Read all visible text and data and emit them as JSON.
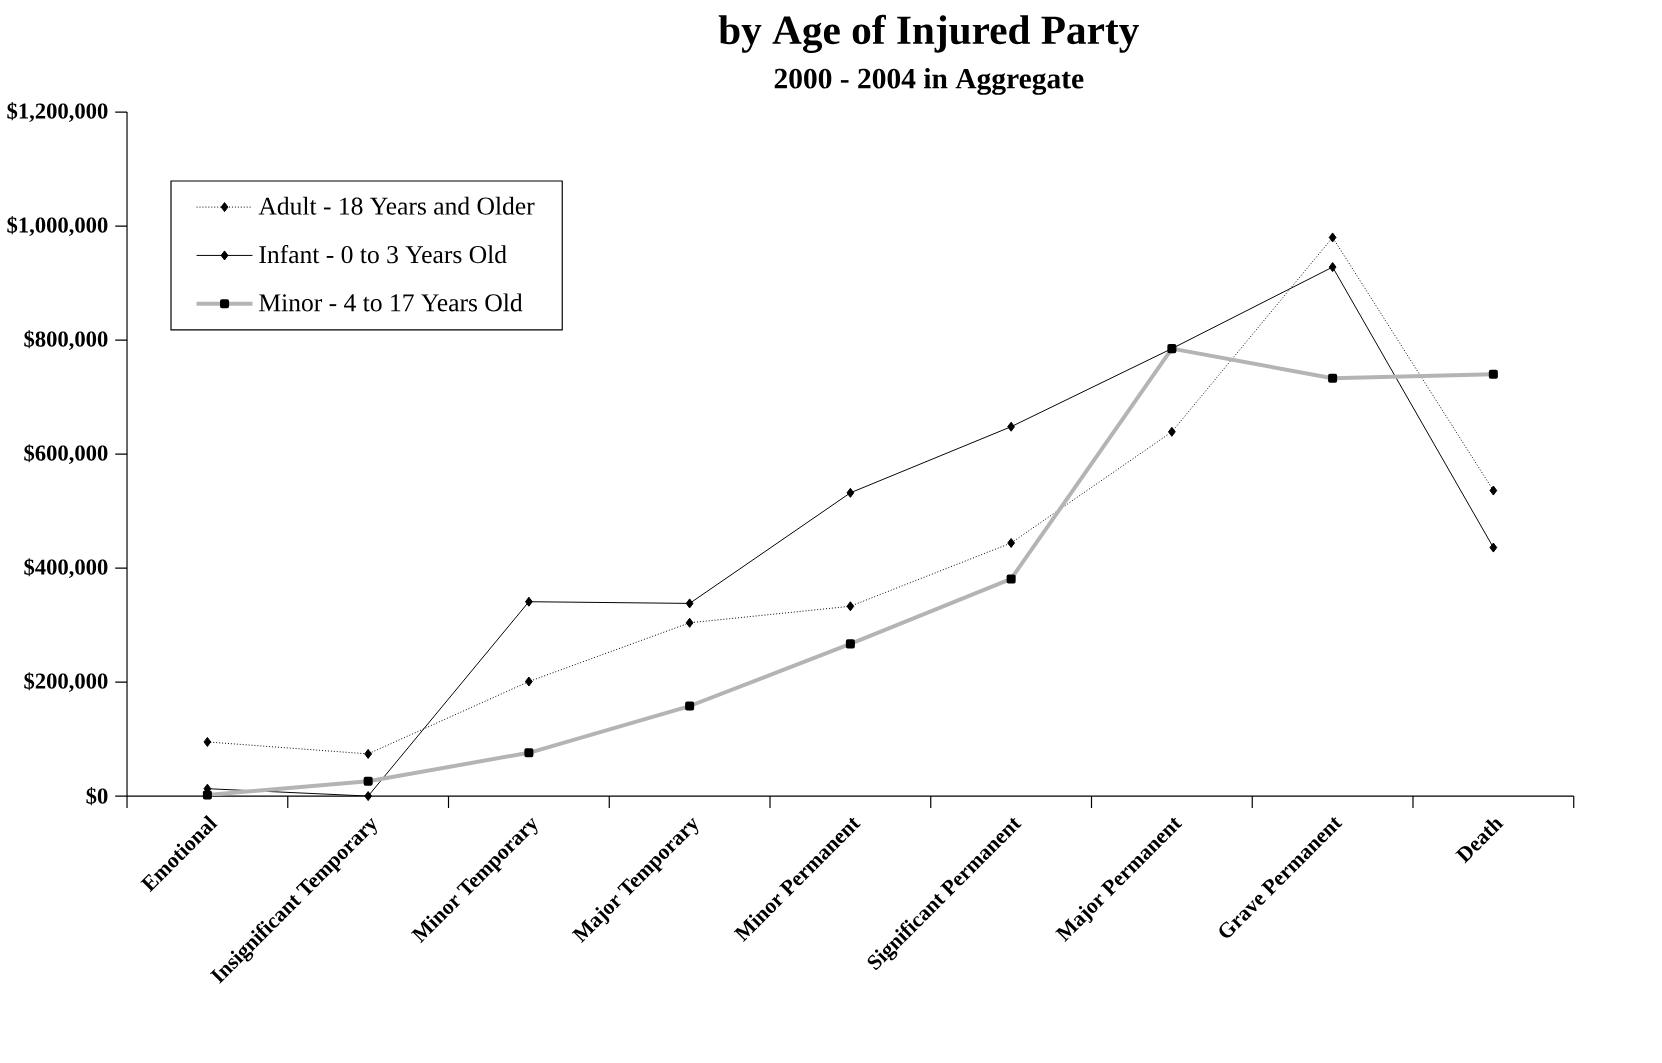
{
  "chart_data": {
    "type": "line",
    "title": "by Age of Injured Party",
    "subtitle": "2000 - 2004 in Aggregate",
    "categories": [
      "Emotional",
      "Insignificant Temporary",
      "Minor Temporary",
      "Major Temporary",
      "Minor Permanent",
      "Significant Permanent",
      "Major Permanent",
      "Grave Permanent",
      "Death"
    ],
    "series": [
      {
        "name": "Adult - 18 Years and Older",
        "color": "#000000",
        "marker": "diamond",
        "line_style": "dotted",
        "values": [
          95000,
          74000,
          201000,
          304000,
          333000,
          444000,
          639000,
          980000,
          536000
        ]
      },
      {
        "name": "Infant - 0 to 3 Years Old",
        "color": "#000000",
        "marker": "diamond",
        "line_style": "solid",
        "values": [
          13000,
          0,
          341000,
          338000,
          532000,
          648000,
          785000,
          928000,
          436000
        ]
      },
      {
        "name": "Minor - 4 to 17 Years Old",
        "color": "#b4b4b4",
        "marker": "square",
        "line_style": "solid",
        "values": [
          2000,
          26000,
          76000,
          158000,
          267000,
          381000,
          785000,
          733000,
          740000
        ]
      }
    ],
    "ylim": [
      0,
      1200000
    ],
    "yticks": [
      {
        "value": 0,
        "label": "$0"
      },
      {
        "value": 200000,
        "label": "$200,000"
      },
      {
        "value": 400000,
        "label": "$400,000"
      },
      {
        "value": 600000,
        "label": "$600,000"
      },
      {
        "value": 800000,
        "label": "$800,000"
      },
      {
        "value": 1000000,
        "label": "$1,000,000"
      },
      {
        "value": 1200000,
        "label": "$1,200,000"
      }
    ],
    "legend": "top left"
  }
}
